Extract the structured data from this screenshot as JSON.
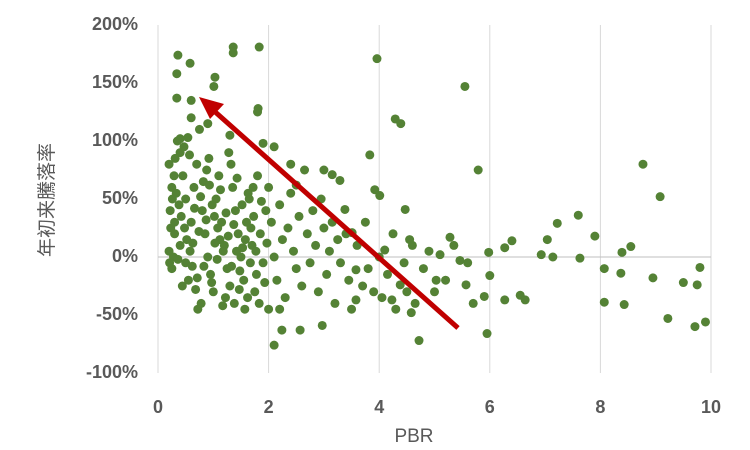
{
  "chart_data": {
    "type": "scatter",
    "x_label": "PBR",
    "y_label": "年初来騰落率",
    "color": "#548235",
    "grid": "x",
    "xlim": [
      0,
      10
    ],
    "xticks": [
      0,
      2,
      4,
      6,
      8,
      10
    ],
    "ylim": [
      -100,
      200
    ],
    "yticks": [
      {
        "value": -100,
        "label": "-100%"
      },
      {
        "value": -50,
        "label": "-50%"
      },
      {
        "value": 0,
        "label": "0%"
      },
      {
        "value": 50,
        "label": "50%"
      },
      {
        "value": 100,
        "label": "100%"
      },
      {
        "value": 150,
        "label": "150%"
      },
      {
        "value": 200,
        "label": "200%"
      }
    ],
    "x": [
      0.36,
      0.34,
      0.58,
      1.03,
      1.36,
      1.36,
      1.83,
      3.96,
      1.01,
      0.34,
      0.6,
      1.81,
      4.29,
      4.39,
      5.55,
      5.79,
      8.77,
      9.08,
      3.83,
      9.22,
      9.71,
      9.9,
      4.72,
      2.1,
      2.24,
      2.57,
      2.97,
      5.95,
      9.8,
      9.75,
      9.5,
      8.95,
      8.37,
      8.55,
      8.39,
      8.07,
      8.07,
      8.43,
      7.9,
      7.63,
      7.6,
      7.22,
      7.04,
      6.93,
      7.14,
      6.4,
      6.27,
      5.98,
      6.0,
      5.9,
      6.27,
      6.55,
      6.64,
      5.28,
      5.46,
      5.57,
      5.1,
      5.03,
      4.6,
      4.47,
      4.38,
      4.23,
      4.58,
      4.1,
      3.92,
      4.01,
      3.51,
      3.38,
      3.15,
      3.29,
      3.58,
      3.58,
      0.2,
      0.25,
      0.22,
      0.3,
      0.28,
      0.25,
      0.35,
      0.4,
      0.45,
      0.5,
      0.3,
      0.4,
      0.5,
      0.55,
      0.6,
      0.65,
      0.7,
      0.75,
      0.8,
      0.85,
      0.9,
      0.95,
      1.0,
      1.05,
      1.1,
      1.15,
      1.2,
      1.25,
      1.3,
      1.35,
      1.4,
      1.45,
      1.5,
      1.55,
      1.6,
      1.65,
      1.7,
      1.75,
      1.8,
      1.85,
      1.9,
      1.95,
      0.33,
      0.38,
      0.42,
      0.48,
      0.52,
      0.58,
      0.62,
      0.68,
      0.72,
      0.78,
      0.82,
      0.88,
      0.92,
      0.98,
      1.02,
      1.08,
      1.12,
      1.18,
      1.22,
      1.28,
      1.32,
      1.38,
      1.42,
      1.48,
      1.52,
      1.58,
      1.62,
      1.68,
      1.72,
      1.78,
      0.2,
      0.21,
      0.23,
      0.26,
      0.29,
      0.31,
      0.36,
      0.44,
      0.47,
      0.54,
      0.57,
      0.63,
      0.66,
      0.71,
      0.74,
      0.77,
      0.83,
      0.87,
      0.93,
      0.97,
      1.03,
      1.07,
      1.13,
      1.17,
      1.23,
      1.27,
      1.33,
      1.37,
      1.43,
      1.47,
      1.53,
      1.57,
      1.63,
      1.67,
      1.73,
      1.77,
      1.83,
      1.87,
      1.93,
      1.97,
      2.0,
      2.05,
      2.1,
      2.15,
      2.2,
      2.25,
      2.3,
      2.35,
      2.4,
      2.45,
      2.5,
      2.55,
      2.6,
      2.65,
      2.7,
      2.75,
      2.8,
      2.85,
      2.9,
      2.95,
      3.0,
      3.05,
      3.1,
      3.15,
      3.2,
      3.25,
      3.3,
      3.4,
      3.45,
      3.5,
      3.6,
      3.7,
      3.75,
      3.8,
      3.9,
      4.0,
      4.05,
      4.15,
      4.25,
      4.3,
      4.45,
      4.5,
      4.55,
      4.65,
      4.8,
      4.9,
      5.0,
      5.2,
      5.35,
      5.6,
      5.7,
      2.1,
      2.4,
      2.0,
      2.2,
      2.5,
      3.0,
      1.8,
      1.9,
      1.3,
      0.9,
      0.6,
      0.4
    ],
    "values": [
      174,
      158,
      167,
      155,
      181,
      176,
      181,
      171,
      147,
      137,
      135,
      128,
      119,
      115,
      147,
      75,
      80,
      52,
      88,
      -53,
      -60,
      -56,
      -72,
      -76,
      -63,
      -63,
      -59,
      -66,
      -9,
      -24,
      -22,
      -18,
      -14,
      9,
      4,
      -10,
      -39,
      -41,
      18,
      -1,
      36,
      29,
      15,
      2,
      0,
      14,
      8,
      4,
      -16,
      -34,
      -37,
      -33,
      -37,
      17,
      -3,
      -24,
      2,
      -20,
      10,
      41,
      -24,
      -37,
      -48,
      6,
      58,
      53,
      21,
      41,
      71,
      66,
      -37,
      -11,
      80,
      60,
      40,
      20,
      0,
      -10,
      100,
      90,
      70,
      50,
      30,
      10,
      -5,
      -20,
      30,
      60,
      80,
      110,
      40,
      20,
      0,
      -15,
      -30,
      50,
      70,
      30,
      10,
      -10,
      -25,
      60,
      40,
      20,
      0,
      -20,
      30,
      50,
      10,
      -30,
      70,
      20,
      -5,
      40,
      55,
      45,
      35,
      25,
      15,
      5,
      -8,
      -28,
      -45,
      -40,
      65,
      75,
      85,
      45,
      35,
      25,
      15,
      5,
      -35,
      90,
      80,
      -40,
      5,
      -12,
      45,
      15,
      -35,
      25,
      60,
      -15,
      5,
      -5,
      25,
      50,
      70,
      85,
      -2,
      -25,
      95,
      103,
      88,
      12,
      42,
      -18,
      22,
      52,
      -8,
      32,
      62,
      -22,
      12,
      -2,
      58,
      -42,
      38,
      18,
      -8,
      28,
      68,
      -28,
      8,
      -45,
      55,
      -5,
      35,
      5,
      -40,
      48,
      -22,
      12,
      60,
      30,
      0,
      -20,
      45,
      15,
      -35,
      25,
      55,
      5,
      -10,
      35,
      -25,
      75,
      20,
      -5,
      40,
      10,
      -30,
      50,
      25,
      -15,
      5,
      30,
      -40,
      15,
      -5,
      20,
      -20,
      -45,
      10,
      -25,
      30,
      -10,
      -30,
      0,
      -35,
      -15,
      20,
      -45,
      -5,
      -30,
      15,
      -40,
      -10,
      5,
      -30,
      -20,
      10,
      -5,
      -40,
      95,
      80,
      -45,
      -45,
      62,
      75,
      125,
      98,
      105,
      115,
      120,
      102
    ]
  }
}
